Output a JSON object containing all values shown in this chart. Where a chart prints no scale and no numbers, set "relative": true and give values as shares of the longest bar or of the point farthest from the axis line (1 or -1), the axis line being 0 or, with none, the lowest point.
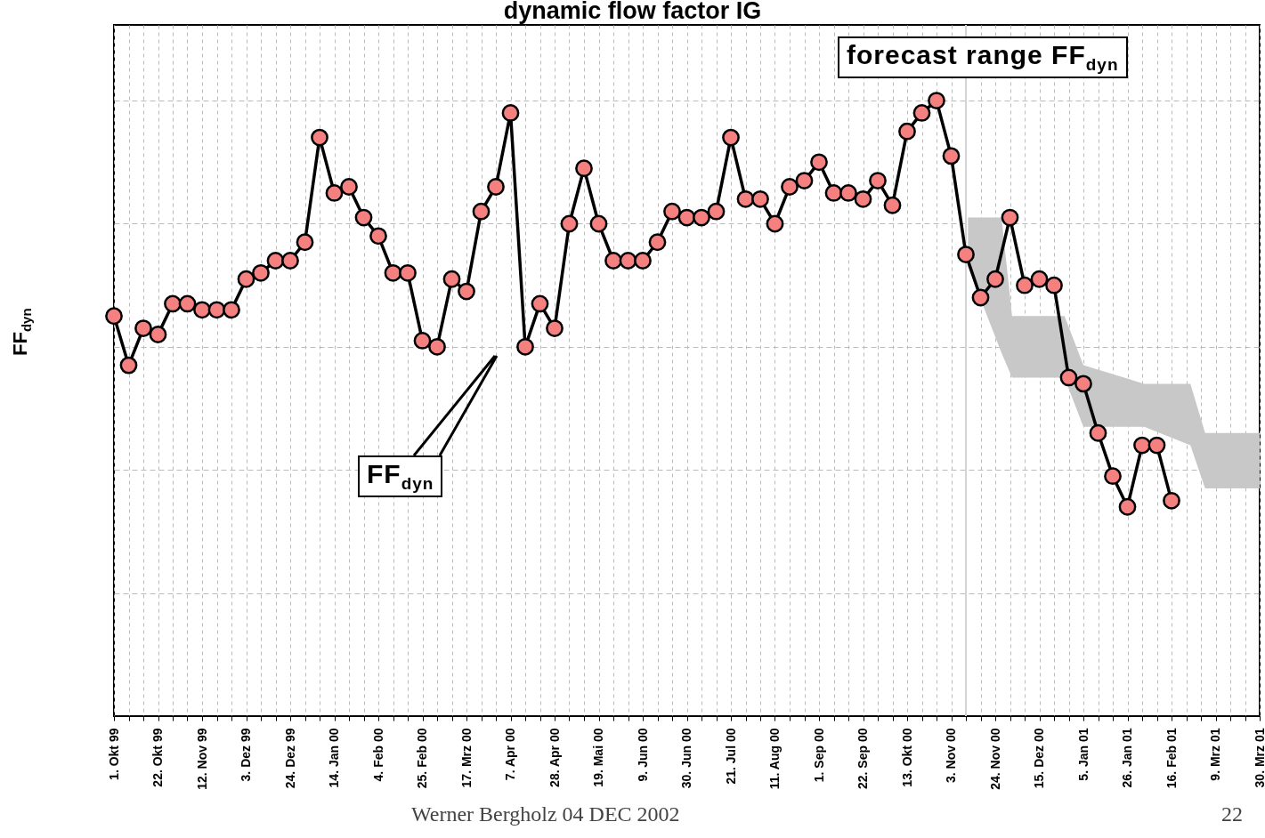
{
  "chart_data": {
    "type": "line",
    "title": "dynamic flow factor IG",
    "ylabel": "FF$_{dyn}$",
    "relative": true,
    "grid": true,
    "marker": "circle",
    "line_style": "solid",
    "xlim": [
      "1999-10-01",
      "2001-03-30"
    ],
    "xticks": [
      {
        "value": "1999-10-01",
        "label": "1. Okt 99"
      },
      {
        "value": "1999-10-08",
        "label": null
      },
      {
        "value": "1999-10-15",
        "label": null
      },
      {
        "value": "1999-10-22",
        "label": "22. Okt 99"
      },
      {
        "value": "1999-10-29",
        "label": null
      },
      {
        "value": "1999-11-05",
        "label": null
      },
      {
        "value": "1999-11-12",
        "label": "12. Nov 99"
      },
      {
        "value": "1999-11-19",
        "label": null
      },
      {
        "value": "1999-11-26",
        "label": null
      },
      {
        "value": "1999-12-03",
        "label": "3. Dez 99"
      },
      {
        "value": "1999-12-10",
        "label": null
      },
      {
        "value": "1999-12-17",
        "label": null
      },
      {
        "value": "1999-12-24",
        "label": "24. Dez 99"
      },
      {
        "value": "1999-12-31",
        "label": null
      },
      {
        "value": "2000-01-07",
        "label": null
      },
      {
        "value": "2000-01-14",
        "label": "14. Jan 00"
      },
      {
        "value": "2000-01-21",
        "label": null
      },
      {
        "value": "2000-01-28",
        "label": null
      },
      {
        "value": "2000-02-04",
        "label": "4. Feb 00"
      },
      {
        "value": "2000-02-11",
        "label": null
      },
      {
        "value": "2000-02-18",
        "label": null
      },
      {
        "value": "2000-02-25",
        "label": "25. Feb 00"
      },
      {
        "value": "2000-03-03",
        "label": null
      },
      {
        "value": "2000-03-10",
        "label": null
      },
      {
        "value": "2000-03-17",
        "label": "17. Mrz 00"
      },
      {
        "value": "2000-03-24",
        "label": null
      },
      {
        "value": "2000-03-31",
        "label": null
      },
      {
        "value": "2000-04-07",
        "label": "7. Apr 00"
      },
      {
        "value": "2000-04-14",
        "label": null
      },
      {
        "value": "2000-04-21",
        "label": null
      },
      {
        "value": "2000-04-28",
        "label": "28. Apr 00"
      },
      {
        "value": "2000-05-05",
        "label": null
      },
      {
        "value": "2000-05-12",
        "label": null
      },
      {
        "value": "2000-05-19",
        "label": "19. Mai 00"
      },
      {
        "value": "2000-05-26",
        "label": null
      },
      {
        "value": "2000-06-02",
        "label": null
      },
      {
        "value": "2000-06-09",
        "label": "9. Jun 00"
      },
      {
        "value": "2000-06-16",
        "label": null
      },
      {
        "value": "2000-06-23",
        "label": null
      },
      {
        "value": "2000-06-30",
        "label": "30. Jun 00"
      },
      {
        "value": "2000-07-07",
        "label": null
      },
      {
        "value": "2000-07-14",
        "label": null
      },
      {
        "value": "2000-07-21",
        "label": "21. Jul 00"
      },
      {
        "value": "2000-07-28",
        "label": null
      },
      {
        "value": "2000-08-04",
        "label": null
      },
      {
        "value": "2000-08-11",
        "label": "11. Aug 00"
      },
      {
        "value": "2000-08-18",
        "label": null
      },
      {
        "value": "2000-08-25",
        "label": null
      },
      {
        "value": "2000-09-01",
        "label": "1. Sep 00"
      },
      {
        "value": "2000-09-08",
        "label": null
      },
      {
        "value": "2000-09-15",
        "label": null
      },
      {
        "value": "2000-09-22",
        "label": "22. Sep 00"
      },
      {
        "value": "2000-09-29",
        "label": null
      },
      {
        "value": "2000-10-06",
        "label": null
      },
      {
        "value": "2000-10-13",
        "label": "13. Okt 00"
      },
      {
        "value": "2000-10-20",
        "label": null
      },
      {
        "value": "2000-10-27",
        "label": null
      },
      {
        "value": "2000-11-03",
        "label": "3. Nov 00"
      },
      {
        "value": "2000-11-10",
        "label": null
      },
      {
        "value": "2000-11-17",
        "label": null
      },
      {
        "value": "2000-11-24",
        "label": "24. Nov 00"
      },
      {
        "value": "2000-12-01",
        "label": null
      },
      {
        "value": "2000-12-08",
        "label": null
      },
      {
        "value": "2000-12-15",
        "label": "15. Dez 00"
      },
      {
        "value": "2000-12-22",
        "label": null
      },
      {
        "value": "2000-12-29",
        "label": null
      },
      {
        "value": "2001-01-05",
        "label": "5. Jan 01"
      },
      {
        "value": "2001-01-12",
        "label": null
      },
      {
        "value": "2001-01-19",
        "label": null
      },
      {
        "value": "2001-01-26",
        "label": "26. Jan 01"
      },
      {
        "value": "2001-02-02",
        "label": null
      },
      {
        "value": "2001-02-09",
        "label": null
      },
      {
        "value": "2001-02-16",
        "label": "16. Feb 01"
      },
      {
        "value": "2001-02-23",
        "label": null
      },
      {
        "value": "2001-03-02",
        "label": null
      },
      {
        "value": "2001-03-09",
        "label": "9. Mrz 01"
      },
      {
        "value": "2001-03-16",
        "label": null
      },
      {
        "value": "2001-03-23",
        "label": null
      },
      {
        "value": "2001-03-30",
        "label": "30. Mrz 01"
      }
    ],
    "x": [
      "1999-10-01",
      "1999-10-08",
      "1999-10-15",
      "1999-10-22",
      "1999-10-29",
      "1999-11-05",
      "1999-11-12",
      "1999-11-19",
      "1999-11-26",
      "1999-12-03",
      "1999-12-10",
      "1999-12-17",
      "1999-12-24",
      "1999-12-31",
      "2000-01-07",
      "2000-01-14",
      "2000-01-21",
      "2000-01-28",
      "2000-02-04",
      "2000-02-11",
      "2000-02-18",
      "2000-02-25",
      "2000-03-03",
      "2000-03-10",
      "2000-03-17",
      "2000-03-24",
      "2000-03-31",
      "2000-04-07",
      "2000-04-14",
      "2000-04-21",
      "2000-04-28",
      "2000-05-05",
      "2000-05-12",
      "2000-05-19",
      "2000-05-26",
      "2000-06-02",
      "2000-06-09",
      "2000-06-16",
      "2000-06-23",
      "2000-06-30",
      "2000-07-07",
      "2000-07-14",
      "2000-07-21",
      "2000-07-28",
      "2000-08-04",
      "2000-08-11",
      "2000-08-18",
      "2000-08-25",
      "2000-09-01",
      "2000-09-08",
      "2000-09-15",
      "2000-09-22",
      "2000-09-29",
      "2000-10-06",
      "2000-10-13",
      "2000-10-20",
      "2000-10-27",
      "2000-11-03",
      "2000-11-10",
      "2000-11-17",
      "2000-11-24",
      "2000-12-01",
      "2000-12-08",
      "2000-12-15",
      "2000-12-22",
      "2000-12-29",
      "2001-01-05",
      "2001-01-12",
      "2001-01-19",
      "2001-01-26",
      "2001-02-02",
      "2001-02-09",
      "2001-02-16"
    ],
    "series": [
      {
        "type": "area",
        "color": "#c8c8c8",
        "values": [
          null,
          null,
          null,
          null,
          null,
          null,
          null,
          null,
          null
        ],
        "x": [
          "2000-11-11",
          "2000-11-27",
          "2000-12-02",
          "2000-12-27",
          "2001-01-05",
          "2001-02-03",
          "2001-02-25",
          "2001-03-04",
          "2001-03-30"
        ],
        "lower": [
          0.73,
          0.59,
          0.55,
          0.55,
          0.47,
          0.47,
          0.44,
          0.37,
          0.37
        ],
        "upper": [
          0.81,
          0.81,
          0.65,
          0.65,
          0.57,
          0.54,
          0.54,
          0.46,
          0.46
        ]
      },
      {
        "type": "line",
        "color": "#f48080",
        "values": [
          0.65,
          0.57,
          0.63,
          0.62,
          0.67,
          0.67,
          0.66,
          0.66,
          0.66,
          0.71,
          0.72,
          0.74,
          0.74,
          0.77,
          0.94,
          0.85,
          0.86,
          0.81,
          0.78,
          0.72,
          0.72,
          0.61,
          0.6,
          0.71,
          0.69,
          0.82,
          0.86,
          0.98,
          0.6,
          0.67,
          0.63,
          0.8,
          0.89,
          0.8,
          0.74,
          0.74,
          0.74,
          0.77,
          0.82,
          0.81,
          0.81,
          0.82,
          0.94,
          0.84,
          0.84,
          0.8,
          0.86,
          0.87,
          0.9,
          0.85,
          0.85,
          0.84,
          0.87,
          0.83,
          0.95,
          0.98,
          1.0,
          0.91,
          0.75,
          0.68,
          0.71,
          0.81,
          0.7,
          0.71,
          0.7,
          0.55,
          0.54,
          0.46,
          0.39,
          0.34,
          0.44,
          0.44,
          0.35
        ]
      }
    ],
    "ref_lines": [
      {
        "axis": "x",
        "value": "2000-11-10",
        "color": "#d4d4d4"
      }
    ],
    "annotations": [
      "FF$_{dyn}$",
      "forecast range FF$_{dyn}$",
      "Werner Bergholz 04 DEC 2002",
      "22"
    ]
  }
}
